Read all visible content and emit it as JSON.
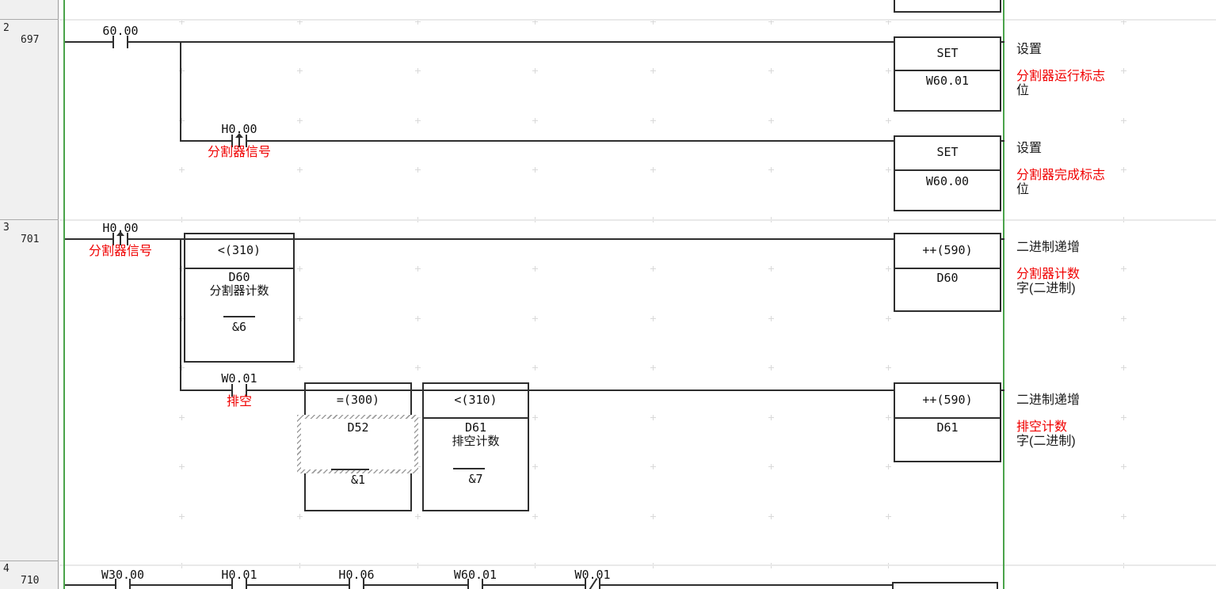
{
  "palette": {
    "bus_green": "#4aa34a",
    "comment_red": "#f00000",
    "wire_black": "#2e2e2e",
    "margin_bg": "#f0f0f0"
  },
  "margin": {
    "rung2": {
      "number": "2",
      "step": "697"
    },
    "rung3": {
      "number": "3",
      "step": "701"
    },
    "rung4": {
      "number": "4",
      "step": "710"
    }
  },
  "rung2": {
    "contact_main": {
      "address": "60.00"
    },
    "contact_branch": {
      "address": "H0.00",
      "comment": "分割器信号"
    },
    "set_run": {
      "mnemonic": "SET",
      "operand": "W60.01",
      "comment": [
        "设置",
        "分割器运行标志",
        "位"
      ]
    },
    "set_done": {
      "mnemonic": "SET",
      "operand": "W60.00",
      "comment": [
        "设置",
        "分割器完成标志",
        "位"
      ]
    }
  },
  "rung3": {
    "contact_main": {
      "address": "H0.00",
      "comment": "分割器信号"
    },
    "cmp_divider": {
      "mnemonic": "<(310)",
      "operand1": "D60",
      "operand1_comment": "分割器计数",
      "operand2": "&6"
    },
    "inc_divider": {
      "mnemonic": "++(590)",
      "operand": "D60",
      "comment": [
        "二进制递增",
        "分割器计数",
        "字(二进制)"
      ]
    },
    "contact_drain": {
      "address": "W0.01",
      "comment": "排空"
    },
    "eq_block": {
      "mnemonic": "=(300)",
      "operand1": "D52",
      "operand2": "&1"
    },
    "cmp_drain": {
      "mnemonic": "<(310)",
      "operand1": "D61",
      "operand1_comment": "排空计数",
      "operand2": "&7"
    },
    "inc_drain": {
      "mnemonic": "++(590)",
      "operand": "D61",
      "comment": [
        "二进制递增",
        "排空计数",
        "字(二进制)"
      ]
    }
  },
  "rung4": {
    "contacts": [
      {
        "address": "W30.00"
      },
      {
        "address": "H0.01"
      },
      {
        "address": "H0.06"
      },
      {
        "address": "W60.01"
      },
      {
        "address": "W0.01"
      }
    ]
  }
}
